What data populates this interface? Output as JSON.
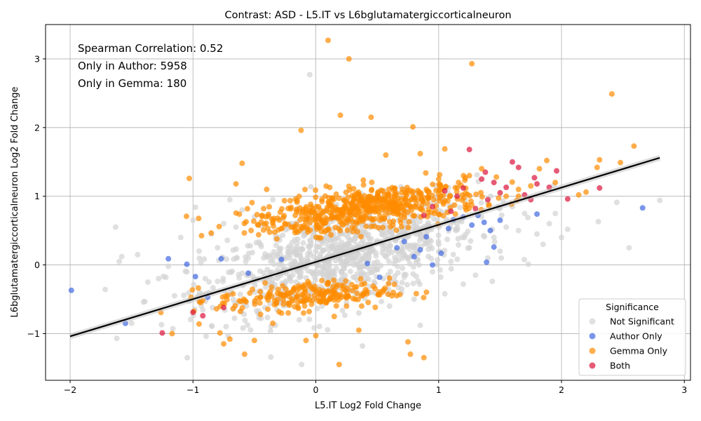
{
  "chart_data": {
    "type": "scatter",
    "title": "Contrast: ASD - L5.IT vs L6bglutamatergiccorticalneuron",
    "xlabel": "L5.IT Log2 Fold Change",
    "ylabel": "L6bglutamatergiccorticalneuron Log2 Fold Change",
    "xlim": [
      -2.2,
      3.05
    ],
    "ylim": [
      -1.68,
      3.5
    ],
    "x_ticks": [
      -2,
      -1,
      0,
      1,
      2,
      3
    ],
    "y_ticks": [
      -1,
      0,
      1,
      2,
      3
    ],
    "grid": true,
    "annotations": [
      "Spearman Correlation: 0.52",
      "Only in Author: 5958",
      "Only in Gemma: 180"
    ],
    "legend": {
      "title": "Significance",
      "placement": "lower-right",
      "entries": [
        {
          "label": "Not Significant",
          "color": "#d3d3d3"
        },
        {
          "label": "Author Only",
          "color": "#4169e1"
        },
        {
          "label": "Gemma Only",
          "color": "#ff8c00"
        },
        {
          "label": "Both",
          "color": "#dc143c"
        }
      ]
    },
    "regression_line": {
      "x": [
        -2.0,
        2.8
      ],
      "y": [
        -1.04,
        1.56
      ],
      "color": "#000000"
    },
    "series": [
      {
        "name": "Not Significant",
        "color": "#d3d3d3",
        "points": [
          [
            -1.63,
            0.55
          ],
          [
            -1.6,
            0.05
          ],
          [
            -1.58,
            0.12
          ],
          [
            -1.45,
            0.15
          ],
          [
            -1.22,
            -0.18
          ],
          [
            -1.2,
            -0.02
          ],
          [
            -1.1,
            0.4
          ],
          [
            -1.05,
            -0.1
          ],
          [
            -1.0,
            0.65
          ],
          [
            -0.98,
            0.84
          ],
          [
            -0.95,
            0.2
          ],
          [
            -0.9,
            -0.2
          ],
          [
            -0.85,
            0.45
          ],
          [
            -0.8,
            0.25
          ],
          [
            -0.75,
            0.6
          ],
          [
            -0.7,
            0.95
          ],
          [
            -0.65,
            0.55
          ],
          [
            -0.6,
            0.8
          ],
          [
            -0.55,
            0.1
          ],
          [
            -0.5,
            0.7
          ],
          [
            -0.45,
            0.3
          ],
          [
            -0.4,
            -0.2
          ],
          [
            -0.35,
            0.95
          ],
          [
            -0.3,
            0.4
          ],
          [
            -0.25,
            -0.35
          ],
          [
            -0.2,
            0.6
          ],
          [
            -0.15,
            0.15
          ],
          [
            -0.1,
            -0.5
          ],
          [
            -0.05,
            2.77
          ],
          [
            0.0,
            0.2
          ],
          [
            0.05,
            -0.6
          ],
          [
            0.1,
            0.45
          ],
          [
            0.15,
            -0.3
          ],
          [
            0.2,
            0.7
          ],
          [
            0.25,
            -0.55
          ],
          [
            0.3,
            0.1
          ],
          [
            0.35,
            -0.7
          ],
          [
            0.38,
            -1.18
          ],
          [
            0.4,
            0.3
          ],
          [
            0.45,
            -0.4
          ],
          [
            0.5,
            0.55
          ],
          [
            0.55,
            -0.2
          ],
          [
            0.6,
            -0.6
          ],
          [
            0.65,
            0.35
          ],
          [
            0.7,
            -0.35
          ],
          [
            0.75,
            0.1
          ],
          [
            0.8,
            -0.5
          ],
          [
            0.85,
            -0.88
          ],
          [
            0.9,
            0.45
          ],
          [
            0.95,
            -0.1
          ],
          [
            1.0,
            0.3
          ],
          [
            1.05,
            -0.42
          ],
          [
            1.1,
            0.05
          ],
          [
            1.15,
            0.6
          ],
          [
            1.2,
            -0.28
          ],
          [
            1.25,
            0.25
          ],
          [
            1.3,
            -0.15
          ],
          [
            1.35,
            0.7
          ],
          [
            1.4,
            0.1
          ],
          [
            1.45,
            0.4
          ],
          [
            1.5,
            0.2
          ],
          [
            1.55,
            0.55
          ],
          [
            1.6,
            0.85
          ],
          [
            1.65,
            0.5
          ],
          [
            1.7,
            0.75
          ],
          [
            1.73,
            0.01
          ],
          [
            1.8,
            0.45
          ],
          [
            1.85,
            0.3
          ],
          [
            1.9,
            0.6
          ],
          [
            1.95,
            0.75
          ],
          [
            2.0,
            0.4
          ],
          [
            2.05,
            0.52
          ],
          [
            2.3,
            0.63
          ],
          [
            2.45,
            0.91
          ],
          [
            2.55,
            0.25
          ],
          [
            2.8,
            0.94
          ],
          [
            -1.62,
            -1.07
          ],
          [
            -1.5,
            -0.85
          ],
          [
            -1.28,
            -0.2
          ],
          [
            -1.15,
            -0.45
          ]
        ]
      },
      {
        "name": "Author Only",
        "color": "#4169e1",
        "points": [
          [
            -1.99,
            -0.37
          ],
          [
            -1.55,
            -0.85
          ],
          [
            -1.2,
            0.09
          ],
          [
            -1.05,
            0.01
          ],
          [
            -0.98,
            -0.17
          ],
          [
            -0.88,
            -0.47
          ],
          [
            -0.77,
            0.09
          ],
          [
            -0.55,
            -0.12
          ],
          [
            -0.28,
            0.08
          ],
          [
            0.42,
            0.02
          ],
          [
            0.52,
            -0.18
          ],
          [
            0.66,
            0.25
          ],
          [
            0.72,
            0.34
          ],
          [
            0.8,
            0.12
          ],
          [
            0.85,
            0.22
          ],
          [
            0.9,
            0.41
          ],
          [
            0.95,
            0.0
          ],
          [
            1.02,
            0.17
          ],
          [
            1.08,
            0.53
          ],
          [
            1.12,
            0.66
          ],
          [
            1.2,
            0.7
          ],
          [
            1.27,
            0.58
          ],
          [
            1.32,
            0.72
          ],
          [
            1.37,
            0.62
          ],
          [
            1.42,
            0.5
          ],
          [
            1.45,
            0.26
          ],
          [
            1.5,
            0.65
          ],
          [
            1.39,
            0.04
          ],
          [
            1.8,
            0.74
          ],
          [
            2.66,
            0.83
          ]
        ]
      },
      {
        "name": "Gemma Only",
        "color": "#ff8c00",
        "points": [
          [
            -1.17,
            -1.0
          ],
          [
            -1.03,
            1.26
          ],
          [
            -0.95,
            -0.86
          ],
          [
            -0.78,
            -0.99
          ],
          [
            -0.75,
            -1.15
          ],
          [
            -0.7,
            -1.08
          ],
          [
            -0.65,
            1.18
          ],
          [
            -0.6,
            1.48
          ],
          [
            -0.58,
            -1.3
          ],
          [
            -0.5,
            -1.1
          ],
          [
            -0.45,
            -0.72
          ],
          [
            -0.4,
            1.1
          ],
          [
            -0.35,
            -0.85
          ],
          [
            -0.12,
            1.96
          ],
          [
            -0.08,
            -1.1
          ],
          [
            0.0,
            -1.03
          ],
          [
            0.1,
            3.27
          ],
          [
            0.2,
            2.18
          ],
          [
            0.19,
            -1.45
          ],
          [
            0.27,
            3.0
          ],
          [
            0.35,
            -0.95
          ],
          [
            0.45,
            2.15
          ],
          [
            0.57,
            1.6
          ],
          [
            0.62,
            -0.45
          ],
          [
            0.75,
            -1.12
          ],
          [
            0.77,
            -1.3
          ],
          [
            0.79,
            2.01
          ],
          [
            0.85,
            1.62
          ],
          [
            0.88,
            -1.35
          ],
          [
            1.05,
            1.69
          ],
          [
            1.27,
            2.93
          ],
          [
            1.25,
            1.3
          ],
          [
            1.35,
            1.4
          ],
          [
            1.47,
            1.28
          ],
          [
            1.55,
            1.0
          ],
          [
            1.65,
            1.1
          ],
          [
            1.75,
            1.15
          ],
          [
            1.82,
            1.4
          ],
          [
            1.88,
            1.52
          ],
          [
            1.95,
            1.2
          ],
          [
            2.14,
            1.02
          ],
          [
            2.2,
            1.06
          ],
          [
            2.29,
            1.42
          ],
          [
            2.31,
            1.53
          ],
          [
            2.41,
            2.49
          ],
          [
            2.48,
            1.49
          ],
          [
            2.59,
            1.73
          ],
          [
            -0.2,
            0.55
          ],
          [
            0.05,
            0.65
          ],
          [
            0.3,
            0.8
          ],
          [
            0.4,
            0.9
          ],
          [
            0.5,
            1.0
          ],
          [
            0.6,
            0.85
          ],
          [
            0.7,
            1.05
          ],
          [
            0.8,
            0.95
          ],
          [
            0.9,
            1.1
          ],
          [
            1.0,
            1.25
          ],
          [
            0.25,
            -0.6
          ],
          [
            -0.1,
            -0.7
          ],
          [
            0.15,
            -0.75
          ]
        ]
      },
      {
        "name": "Both",
        "color": "#dc143c",
        "points": [
          [
            -1.25,
            -0.99
          ],
          [
            -1.0,
            -0.69
          ],
          [
            -0.92,
            -0.74
          ],
          [
            -0.75,
            -0.62
          ],
          [
            0.88,
            0.72
          ],
          [
            0.95,
            0.85
          ],
          [
            1.05,
            1.08
          ],
          [
            1.1,
            0.78
          ],
          [
            1.15,
            1.0
          ],
          [
            1.2,
            1.12
          ],
          [
            1.25,
            1.68
          ],
          [
            1.3,
            0.82
          ],
          [
            1.35,
            1.25
          ],
          [
            1.38,
            1.35
          ],
          [
            1.4,
            0.95
          ],
          [
            1.45,
            1.2
          ],
          [
            1.5,
            1.05
          ],
          [
            1.55,
            1.13
          ],
          [
            1.6,
            1.5
          ],
          [
            1.65,
            1.42
          ],
          [
            1.7,
            1.02
          ],
          [
            1.75,
            0.95
          ],
          [
            1.78,
            1.27
          ],
          [
            1.8,
            1.18
          ],
          [
            1.9,
            1.13
          ],
          [
            1.96,
            1.37
          ],
          [
            2.05,
            0.96
          ],
          [
            2.31,
            1.12
          ]
        ]
      }
    ],
    "dense_clouds": [
      {
        "series": "Not Significant",
        "color": "#d3d3d3",
        "center": [
          0.2,
          0.1
        ],
        "spread": [
          0.55,
          0.35
        ],
        "count": 900,
        "slope": 0.45
      },
      {
        "series": "Gemma Only",
        "color": "#ff8c00",
        "center": [
          0.55,
          0.88
        ],
        "spread": [
          0.4,
          0.14
        ],
        "count": 420,
        "slope": 0.15
      },
      {
        "series": "Gemma Only",
        "color": "#ff8c00",
        "center": [
          0.0,
          0.66
        ],
        "spread": [
          0.35,
          0.12
        ],
        "count": 150,
        "slope": 0.1
      },
      {
        "series": "Gemma Only",
        "color": "#ff8c00",
        "center": [
          -0.1,
          -0.45
        ],
        "spread": [
          0.35,
          0.1
        ],
        "count": 220,
        "slope": 0.08
      }
    ]
  }
}
